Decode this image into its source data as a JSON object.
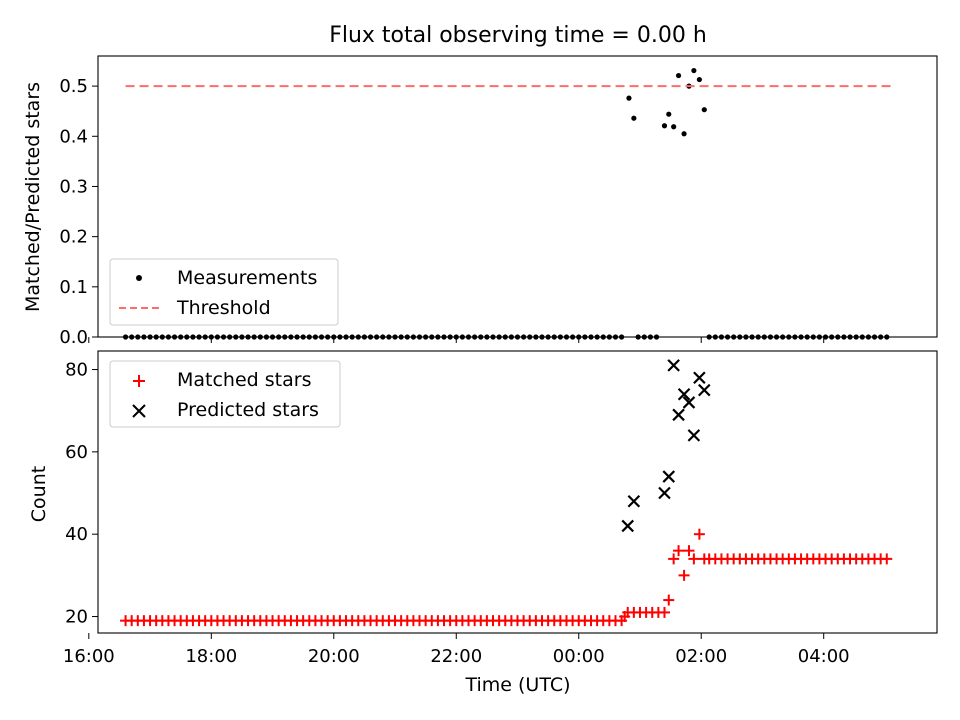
{
  "figure": {
    "title": "Flux total observing time = 0.00 h"
  },
  "chart_data": [
    {
      "type": "scatter",
      "title": "Flux total observing time = 0.00 h",
      "xlabel": "",
      "ylabel": "Matched/Predicted stars",
      "xlim": [
        -7.85,
        5.85
      ],
      "ylim": [
        0,
        0.56
      ],
      "yticks": [
        0.0,
        0.1,
        0.2,
        0.3,
        0.4,
        0.5
      ],
      "ytick_labels": [
        "0.0",
        "0.1",
        "0.2",
        "0.3",
        "0.4",
        "0.5"
      ],
      "legend_position": "lower-left",
      "legend": [
        {
          "label": "Measurements",
          "marker": "dot",
          "color": "#000000"
        },
        {
          "label": "Threshold",
          "marker": "dashed-line",
          "color": "#ff6b6b"
        }
      ],
      "series": [
        {
          "name": "Measurements",
          "marker": "dot",
          "color": "#000000",
          "x_note": "hours relative to 00:00 UTC",
          "points": [
            [
              0.82,
              0.476
            ],
            [
              0.9,
              0.436
            ],
            [
              1.4,
              0.421
            ],
            [
              1.47,
              0.444
            ],
            [
              1.55,
              0.419
            ],
            [
              1.63,
              0.521
            ],
            [
              1.72,
              0.405
            ],
            [
              1.8,
              0.5
            ],
            [
              1.88,
              0.531
            ],
            [
              1.97,
              0.513
            ],
            [
              2.05,
              0.453
            ]
          ],
          "zero_runs": [
            [
              -7.4,
              0.75,
              0.1
            ],
            [
              0.97,
              1.35,
              0.1
            ],
            [
              2.13,
              5.1,
              0.1
            ]
          ]
        },
        {
          "name": "Threshold",
          "type": "line",
          "style": "dashed",
          "color": "#ff6b6b",
          "x": [
            -7.4,
            5.1
          ],
          "y": [
            0.5,
            0.5
          ]
        }
      ]
    },
    {
      "type": "scatter",
      "title": "",
      "xlabel": "Time (UTC)",
      "ylabel": "Count",
      "xlim": [
        -7.85,
        5.85
      ],
      "ylim": [
        16,
        84.5
      ],
      "xticks": [
        -8,
        -6,
        -4,
        -2,
        0,
        2,
        4
      ],
      "xtick_labels": [
        "16:00",
        "18:00",
        "20:00",
        "22:00",
        "00:00",
        "02:00",
        "04:00"
      ],
      "yticks": [
        20,
        40,
        60,
        80
      ],
      "ytick_labels": [
        "20",
        "40",
        "60",
        "80"
      ],
      "legend_position": "top-left",
      "legend": [
        {
          "label": "Matched stars",
          "marker": "plus",
          "color": "#ff0000"
        },
        {
          "label": "Predicted stars",
          "marker": "x",
          "color": "#000000"
        }
      ],
      "series": [
        {
          "name": "Matched stars",
          "marker": "plus",
          "color": "#ff0000",
          "runs": [
            [
              -7.4,
              0.72,
              0.1,
              19
            ],
            [
              0.8,
              1.4,
              0.1,
              21
            ],
            [
              2.13,
              5.1,
              0.1,
              34
            ]
          ],
          "points": [
            [
              0.75,
              20
            ],
            [
              1.47,
              24
            ],
            [
              1.55,
              34
            ],
            [
              1.63,
              36
            ],
            [
              1.72,
              30
            ],
            [
              1.8,
              36
            ],
            [
              1.88,
              34
            ],
            [
              1.97,
              40
            ],
            [
              2.05,
              34
            ]
          ]
        },
        {
          "name": "Predicted stars",
          "marker": "x",
          "color": "#000000",
          "points": [
            [
              0.8,
              42
            ],
            [
              0.9,
              48
            ],
            [
              1.4,
              50
            ],
            [
              1.47,
              54
            ],
            [
              1.55,
              81
            ],
            [
              1.63,
              69
            ],
            [
              1.72,
              74
            ],
            [
              1.8,
              72
            ],
            [
              1.88,
              64
            ],
            [
              1.97,
              78
            ],
            [
              2.05,
              75
            ]
          ]
        }
      ]
    }
  ]
}
